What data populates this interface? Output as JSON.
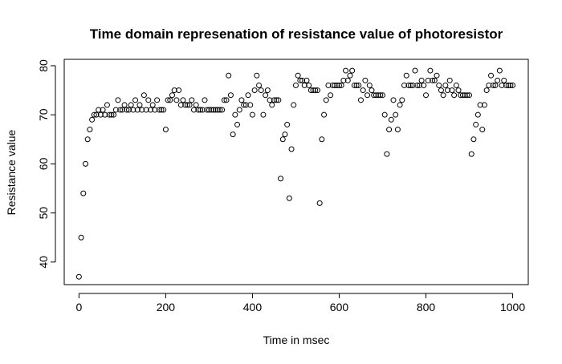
{
  "chart_data": {
    "type": "scatter",
    "title": "Time domain represenation of resistance value of photoresistor",
    "x_label": "Time in msec",
    "y_label": "Resistance value",
    "color": "#000000",
    "x": [
      0,
      5,
      10,
      15,
      20,
      25,
      30,
      35,
      40,
      45,
      50,
      55,
      60,
      65,
      70,
      75,
      80,
      85,
      90,
      95,
      100,
      105,
      110,
      115,
      120,
      125,
      130,
      135,
      140,
      145,
      150,
      155,
      160,
      165,
      170,
      175,
      180,
      185,
      190,
      195,
      200,
      205,
      210,
      215,
      220,
      225,
      230,
      235,
      240,
      245,
      250,
      255,
      260,
      265,
      270,
      275,
      280,
      285,
      290,
      295,
      300,
      305,
      310,
      315,
      320,
      325,
      330,
      335,
      340,
      345,
      350,
      355,
      360,
      365,
      370,
      375,
      380,
      385,
      390,
      395,
      400,
      405,
      410,
      415,
      420,
      425,
      430,
      435,
      440,
      445,
      450,
      455,
      460,
      465,
      470,
      475,
      480,
      485,
      490,
      495,
      500,
      505,
      510,
      515,
      520,
      525,
      530,
      535,
      540,
      545,
      550,
      555,
      560,
      565,
      570,
      575,
      580,
      585,
      590,
      595,
      600,
      605,
      610,
      615,
      620,
      625,
      630,
      635,
      640,
      645,
      650,
      655,
      660,
      665,
      670,
      675,
      680,
      685,
      690,
      695,
      700,
      705,
      710,
      715,
      720,
      725,
      730,
      735,
      740,
      745,
      750,
      755,
      760,
      765,
      770,
      775,
      780,
      785,
      790,
      795,
      800,
      805,
      810,
      815,
      820,
      825,
      830,
      835,
      840,
      845,
      850,
      855,
      860,
      865,
      870,
      875,
      880,
      885,
      890,
      895,
      900,
      905,
      910,
      915,
      920,
      925,
      930,
      935,
      940,
      945,
      950,
      955,
      960,
      965,
      970,
      975,
      980,
      985,
      990,
      995,
      1000
    ],
    "values": [
      37,
      45,
      54,
      60,
      65,
      67,
      69,
      70,
      70,
      71,
      70,
      71,
      70,
      72,
      70,
      70,
      70,
      71,
      73,
      71,
      71,
      72,
      71,
      71,
      72,
      71,
      73,
      71,
      72,
      71,
      74,
      71,
      73,
      71,
      72,
      71,
      73,
      71,
      71,
      71,
      67,
      73,
      73,
      74,
      75,
      73,
      75,
      72,
      73,
      72,
      72,
      72,
      73,
      71,
      72,
      71,
      71,
      71,
      73,
      71,
      71,
      71,
      71,
      71,
      71,
      71,
      71,
      73,
      73,
      78,
      74,
      66,
      70,
      68,
      71,
      73,
      72,
      72,
      74,
      72,
      70,
      75,
      78,
      76,
      75,
      70,
      74,
      75,
      73,
      72,
      73,
      73,
      73,
      57,
      65,
      66,
      68,
      53,
      63,
      72,
      76,
      78,
      77,
      77,
      76,
      77,
      76,
      75,
      75,
      75,
      75,
      52,
      65,
      70,
      73,
      76,
      74,
      76,
      76,
      76,
      76,
      76,
      77,
      79,
      77,
      78,
      79,
      76,
      76,
      76,
      73,
      75,
      77,
      74,
      76,
      75,
      74,
      74,
      74,
      74,
      74,
      70,
      62,
      67,
      69,
      73,
      70,
      67,
      72,
      73,
      76,
      78,
      76,
      76,
      76,
      79,
      76,
      76,
      77,
      76,
      74,
      77,
      79,
      77,
      77,
      78,
      76,
      75,
      74,
      76,
      75,
      77,
      75,
      74,
      76,
      75,
      74,
      74,
      74,
      74,
      74,
      62,
      65,
      68,
      70,
      72,
      67,
      72,
      75,
      76,
      78,
      76,
      76,
      77,
      79,
      76,
      77,
      76,
      76,
      76,
      76
    ],
    "xlim": [
      -34,
      1036
    ],
    "ylim": [
      35.4,
      81.3
    ],
    "xticks": [
      0,
      200,
      400,
      600,
      800,
      1000
    ],
    "yticks": [
      40,
      50,
      60,
      70,
      80
    ]
  }
}
